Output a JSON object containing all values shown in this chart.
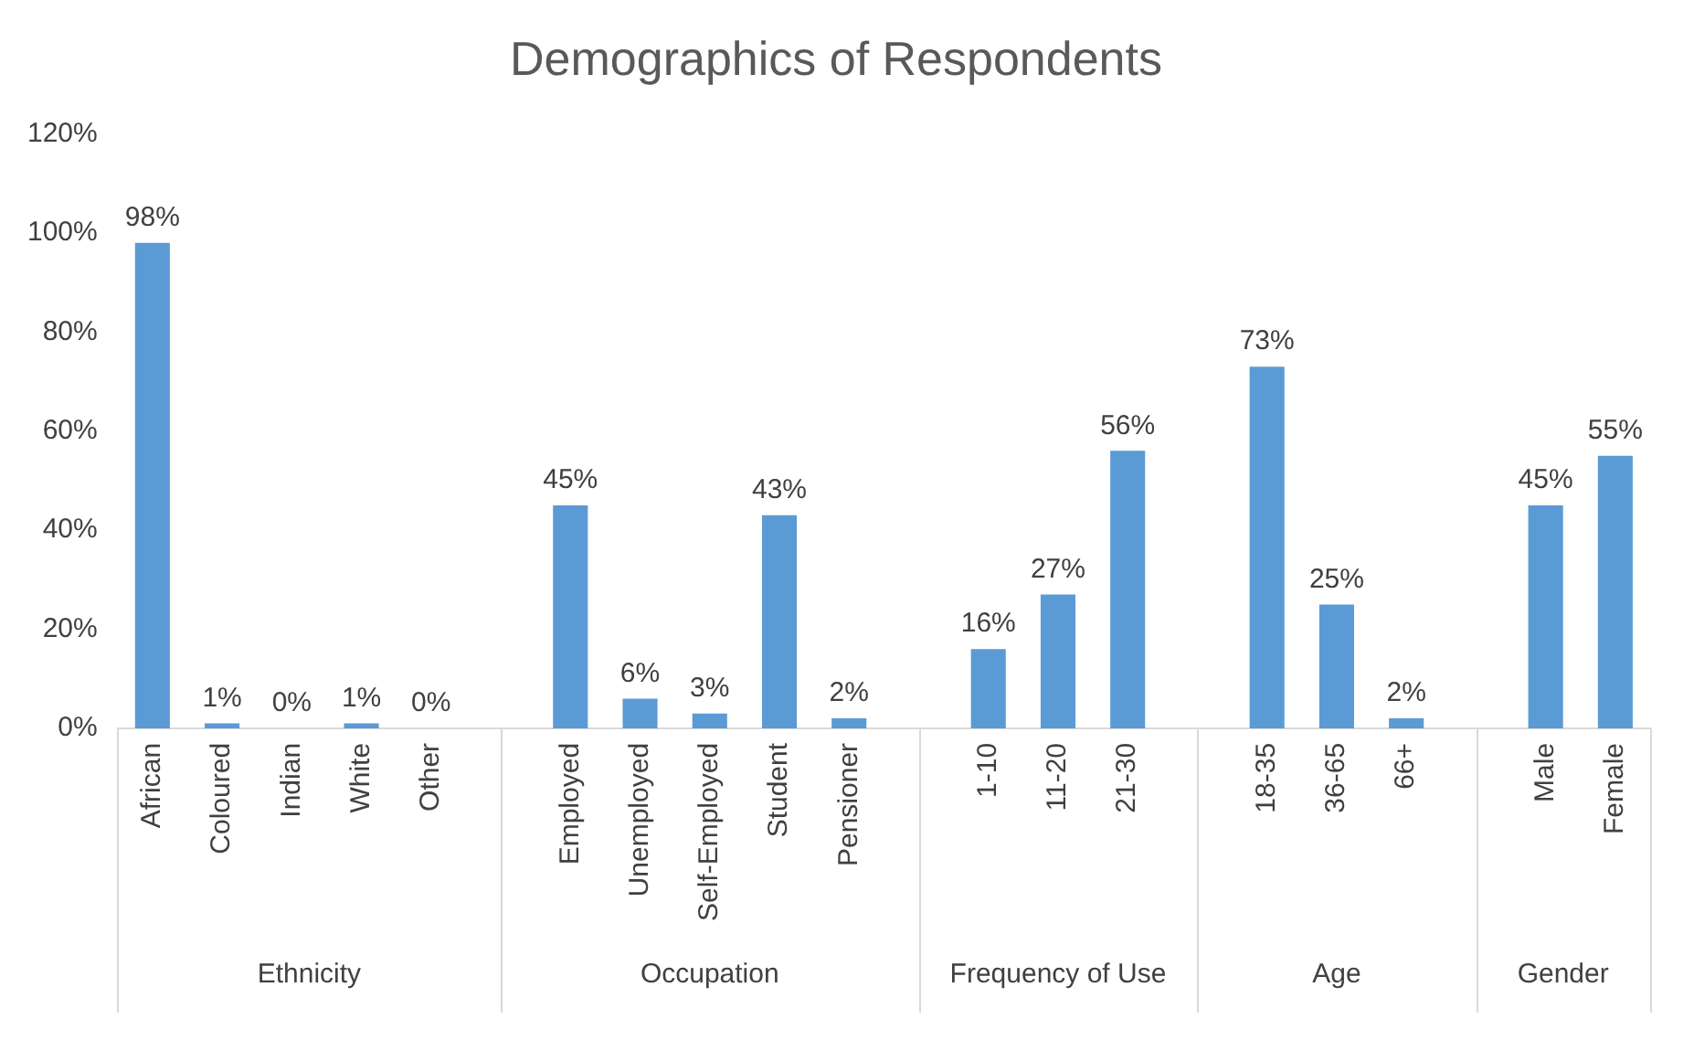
{
  "chart_data": {
    "type": "bar",
    "title": "Demographics of Respondents",
    "categories": [
      "African",
      "Coloured",
      "Indian",
      "White",
      "Other",
      null,
      "Employed",
      "Unemployed",
      "Self-Employed",
      "Student",
      "Pensioner",
      null,
      "1-10",
      "11-20",
      "21-30",
      null,
      "18-35",
      "36-65",
      "66+",
      null,
      "Male",
      "Female"
    ],
    "values": [
      98,
      1,
      0,
      1,
      0,
      null,
      45,
      6,
      3,
      43,
      2,
      null,
      16,
      27,
      56,
      null,
      73,
      25,
      2,
      null,
      45,
      55
    ],
    "value_labels": [
      "98%",
      "1%",
      "0%",
      "1%",
      "0%",
      null,
      "45%",
      "6%",
      "3%",
      "43%",
      "2%",
      null,
      "16%",
      "27%",
      "56%",
      null,
      "73%",
      "25%",
      "2%",
      null,
      "45%",
      "55%"
    ],
    "color": "#5b9bd5",
    "ylim": [
      0,
      120
    ],
    "yticks": [
      {
        "value": 0,
        "label": "0%"
      },
      {
        "value": 20,
        "label": "20%"
      },
      {
        "value": 40,
        "label": "40%"
      },
      {
        "value": 60,
        "label": "60%"
      },
      {
        "value": 80,
        "label": "80%"
      },
      {
        "value": 100,
        "label": "100%"
      },
      {
        "value": 120,
        "label": "120%"
      }
    ],
    "grid": false,
    "legend": false,
    "annotations": [
      "Ethnicity",
      "Occupation",
      "Frequency of Use",
      "Age",
      "Gender"
    ]
  }
}
